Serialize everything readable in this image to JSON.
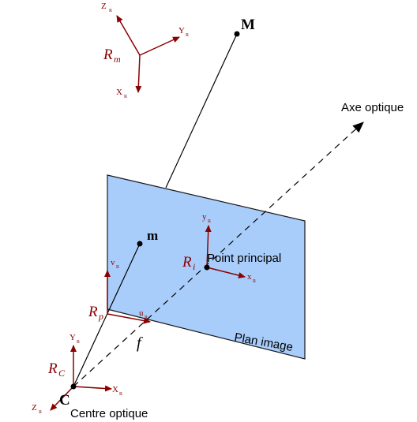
{
  "colors": {
    "plane_fill": "#a9cdfa",
    "plane_stroke": "#1a1a1a",
    "axis_color": "#8b0000",
    "ray_color": "#000000"
  },
  "points": {
    "world_point": "M",
    "image_point": "m",
    "camera_center": "C"
  },
  "labels": {
    "optical_axis": "Axe optique",
    "principal_point": "Point principal",
    "image_plane": "Plan image",
    "optical_center": "Centre optique",
    "focal": "f"
  },
  "frames": {
    "world": {
      "name": "R",
      "sub": "m",
      "z_axis": "Z",
      "y_axis": "Y",
      "x_axis": "X",
      "axis_sub": "R"
    },
    "image": {
      "name": "R",
      "sub": "i",
      "y_axis": "y",
      "x_axis": "x",
      "axis_sub": "R"
    },
    "pixel": {
      "name": "R",
      "sub": "p",
      "v_axis": "v",
      "u_axis": "u",
      "axis_sub": "R"
    },
    "camera": {
      "name": "R",
      "sub": "C",
      "y_axis": "Y",
      "x_axis": "X",
      "z_axis": "Z",
      "axis_sub": "R"
    }
  }
}
